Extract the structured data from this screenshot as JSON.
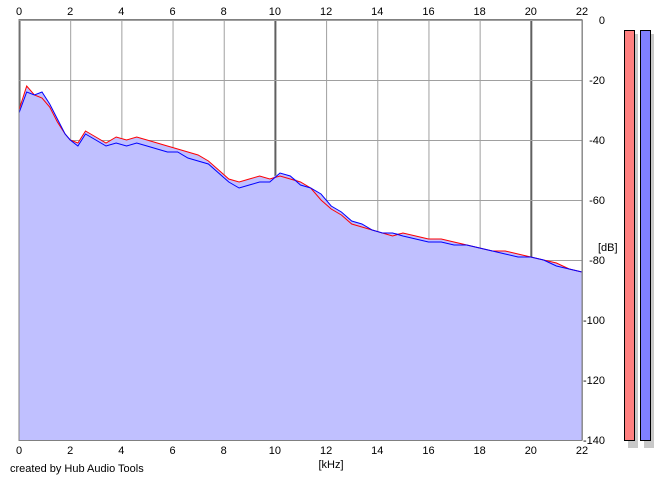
{
  "chart_data": {
    "type": "area",
    "title": "",
    "xlabel": "[kHz]",
    "ylabel": "[dB]",
    "xlim": [
      0,
      22
    ],
    "ylim": [
      -140,
      0
    ],
    "x_ticks": [
      "0",
      "2",
      "4",
      "6",
      "8",
      "10",
      "12",
      "14",
      "16",
      "18",
      "20",
      "22"
    ],
    "y_ticks": [
      "0",
      "-20",
      "-40",
      "-60",
      "-80",
      "-100",
      "-120",
      "-140"
    ],
    "grid": true,
    "filled_area_color": "#c0c0ff",
    "series": [
      {
        "color": "#ff0000",
        "x": [
          0,
          0.3,
          0.6,
          0.9,
          1.2,
          1.5,
          1.8,
          2.0,
          2.3,
          2.6,
          3.0,
          3.4,
          3.8,
          4.2,
          4.6,
          5.0,
          5.4,
          5.8,
          6.2,
          6.6,
          7.0,
          7.4,
          7.8,
          8.2,
          8.6,
          9.0,
          9.4,
          9.8,
          10.2,
          10.6,
          11.0,
          11.4,
          11.8,
          12.2,
          12.6,
          13.0,
          13.4,
          13.8,
          14.2,
          14.6,
          15.0,
          15.5,
          16.0,
          16.5,
          17.0,
          17.5,
          18.0,
          18.5,
          19.0,
          19.5,
          20.0,
          20.5,
          21.0,
          21.5,
          22.0
        ],
        "values": [
          -30,
          -22,
          -25,
          -26,
          -29,
          -34,
          -38,
          -40,
          -41,
          -37,
          -39,
          -41,
          -39,
          -40,
          -39,
          -40,
          -41,
          -42,
          -43,
          -44,
          -45,
          -47,
          -50,
          -53,
          -54,
          -53,
          -52,
          -53,
          -52,
          -53,
          -54,
          -56,
          -60,
          -63,
          -65,
          -68,
          -69,
          -70,
          -71,
          -72,
          -71,
          -72,
          -73,
          -73,
          -74,
          -75,
          -76,
          -77,
          -77,
          -78,
          -79,
          -80,
          -81,
          -83,
          -84
        ]
      },
      {
        "color": "#0000ff",
        "x": [
          0,
          0.3,
          0.6,
          0.9,
          1.2,
          1.5,
          1.8,
          2.0,
          2.3,
          2.6,
          3.0,
          3.4,
          3.8,
          4.2,
          4.6,
          5.0,
          5.4,
          5.8,
          6.2,
          6.6,
          7.0,
          7.4,
          7.8,
          8.2,
          8.6,
          9.0,
          9.4,
          9.8,
          10.2,
          10.6,
          11.0,
          11.4,
          11.8,
          12.2,
          12.6,
          13.0,
          13.4,
          13.8,
          14.2,
          14.6,
          15.0,
          15.5,
          16.0,
          16.5,
          17.0,
          17.5,
          18.0,
          18.5,
          19.0,
          19.5,
          20.0,
          20.5,
          21.0,
          21.5,
          22.0
        ],
        "values": [
          -31,
          -24,
          -25,
          -24,
          -28,
          -33,
          -38,
          -40,
          -42,
          -38,
          -40,
          -42,
          -41,
          -42,
          -41,
          -42,
          -43,
          -44,
          -44,
          -46,
          -47,
          -48,
          -51,
          -54,
          -56,
          -55,
          -54,
          -54,
          -51,
          -52,
          -55,
          -56,
          -58,
          -62,
          -64,
          -67,
          -68,
          -70,
          -71,
          -71,
          -72,
          -73,
          -74,
          -74,
          -75,
          -75,
          -76,
          -77,
          -78,
          -79,
          -79,
          -80,
          -82,
          -83,
          -84
        ]
      }
    ],
    "level_meters": [
      {
        "color": "#ff8080",
        "level_db": 0
      },
      {
        "color": "#8080ff",
        "level_db": 0
      }
    ]
  },
  "footer": {
    "credit": "created by Hub Audio Tools"
  }
}
